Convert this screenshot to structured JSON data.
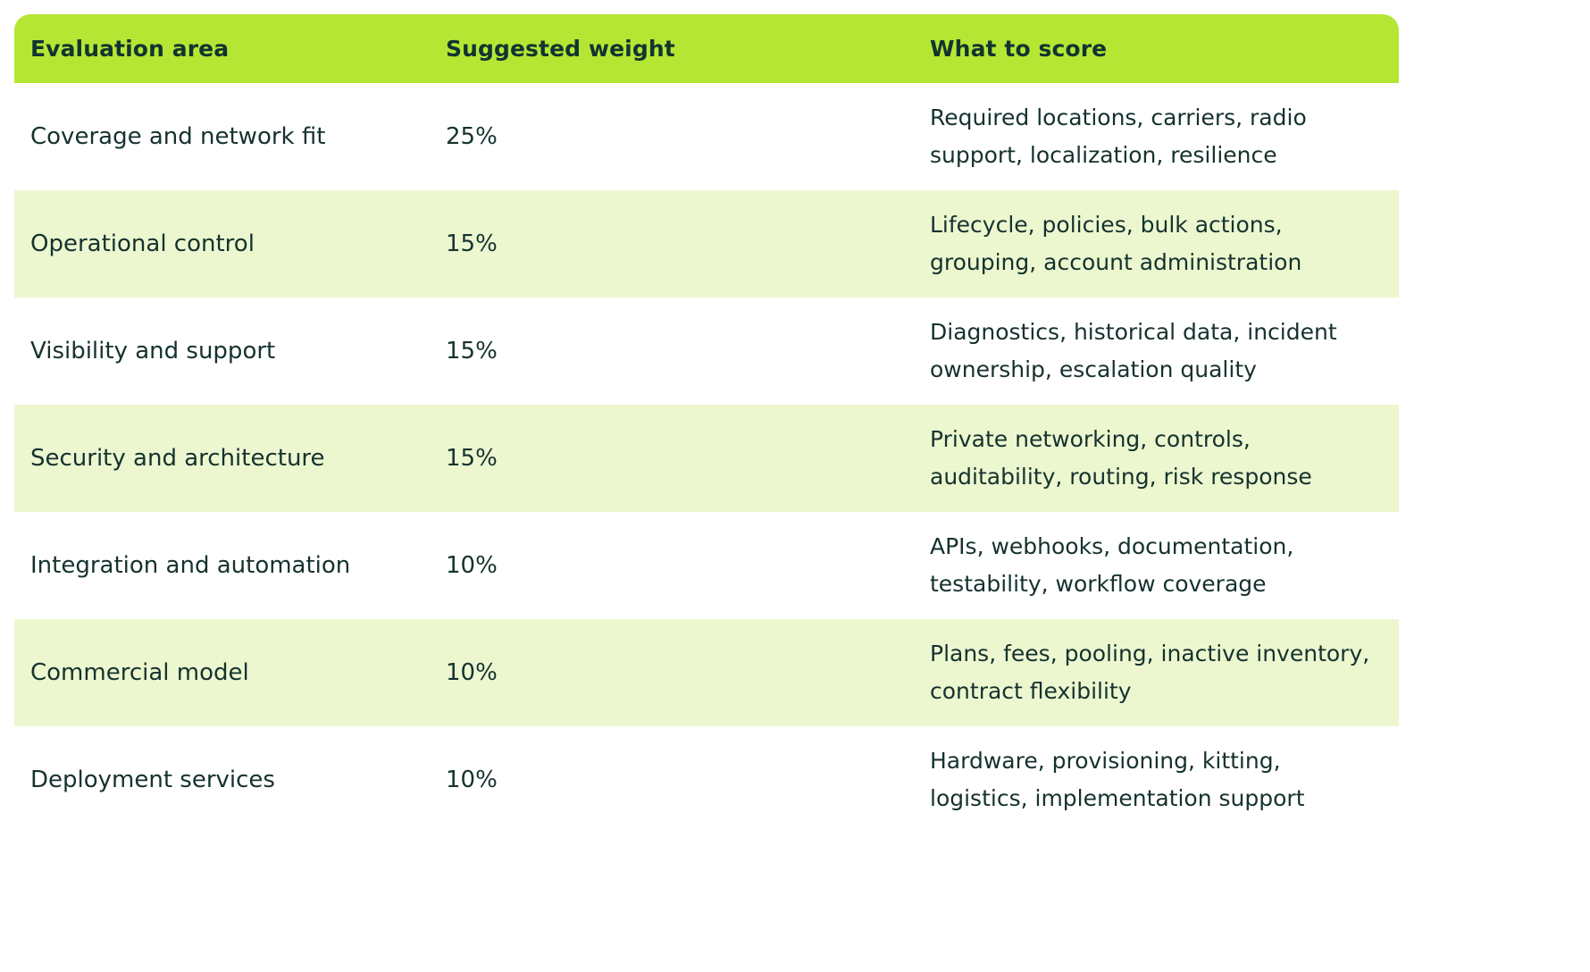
{
  "header": {
    "area": "Evaluation area",
    "weight": "Suggested weight",
    "score": "What to score"
  },
  "rows": [
    {
      "area": "Coverage and network fit",
      "weight": "25%",
      "score": "Required locations, carriers, radio\nsupport, localization, resilience"
    },
    {
      "area": "Operational control",
      "weight": "15%",
      "score": "Lifecycle, policies, bulk actions,\ngrouping, account administration"
    },
    {
      "area": "Visibility and support",
      "weight": "15%",
      "score": "Diagnostics, historical data, incident\nownership, escalation quality"
    },
    {
      "area": "Security and architecture",
      "weight": "15%",
      "score": "Private networking, controls,\nauditability, routing, risk response"
    },
    {
      "area": "Integration and automation",
      "weight": "10%",
      "score": "APIs, webhooks, documentation,\ntestability, workflow coverage"
    },
    {
      "area": "Commercial model",
      "weight": "10%",
      "score": "Plans, fees, pooling, inactive inventory,\ncontract flexibility"
    },
    {
      "area": "Deployment services",
      "weight": "10%",
      "score": "Hardware, provisioning, kitting,\nlogistics, implementation support"
    }
  ],
  "colors": {
    "header_bg": "#b5e634",
    "alt_row_bg": "#ecf7d0",
    "text": "#15322e"
  }
}
